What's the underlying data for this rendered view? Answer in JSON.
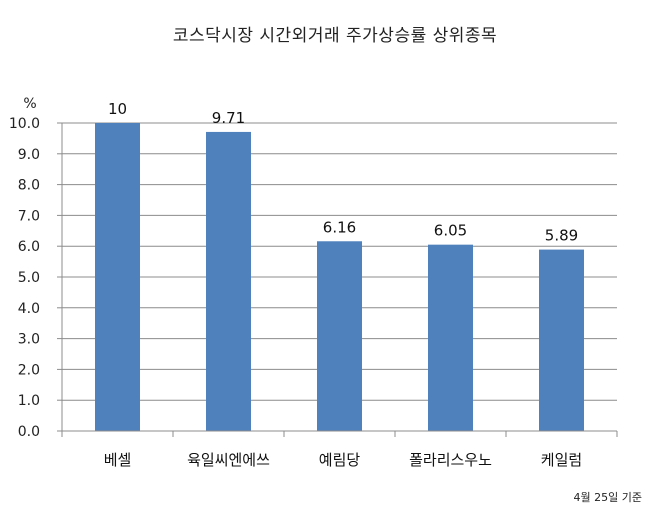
{
  "chart_data": {
    "type": "bar",
    "title": "코스닥시장 시간외거래  주가상승률 상위종목",
    "ylabel": "%",
    "xlabel": "",
    "categories": [
      "베셀",
      "육일씨엔에쓰",
      "예림당",
      "폴라리스우노",
      "케일럼"
    ],
    "values": [
      10,
      9.71,
      6.16,
      6.05,
      5.89
    ],
    "data_labels": [
      "10",
      "9.71",
      "6.16",
      "6.05",
      "5.89"
    ],
    "ylim": [
      0,
      10
    ],
    "yticks": [
      "0.0",
      "1.0",
      "2.0",
      "3.0",
      "4.0",
      "5.0",
      "6.0",
      "7.0",
      "8.0",
      "9.0",
      "10.0"
    ],
    "grid": true,
    "bar_color": "#4f81bd",
    "note": "4월 25일 기준"
  }
}
